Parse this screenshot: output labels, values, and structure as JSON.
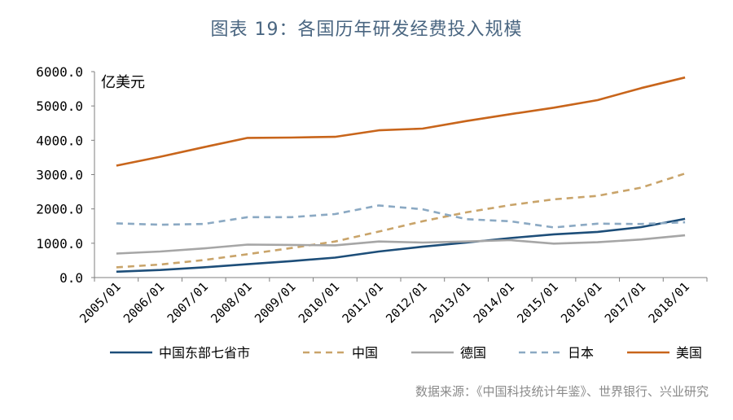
{
  "title": "图表 19：各国历年研发经费投入规模",
  "source": "数据来源：《中国科技统计年鉴》、世界银行、兴业研究",
  "colors": {
    "east7": "#1d4e79",
    "china": "#c9a46a",
    "germany": "#a6a6a6",
    "japan": "#8ba9c3",
    "usa": "#c8651b"
  },
  "chart_data": {
    "type": "line",
    "title": "图表 19：各国历年研发经费投入规模",
    "ylabel": "亿美元",
    "xlabel": "",
    "ylim": [
      0,
      6000
    ],
    "yticks": [
      "0.0",
      "1000.0",
      "2000.0",
      "3000.0",
      "4000.0",
      "5000.0",
      "6000.0"
    ],
    "yticks_values": [
      0,
      1000,
      2000,
      3000,
      4000,
      5000,
      6000
    ],
    "grid": false,
    "legend_position": "bottom",
    "categories": [
      "2005/01",
      "2006/01",
      "2007/01",
      "2008/01",
      "2009/01",
      "2010/01",
      "2011/01",
      "2012/01",
      "2013/01",
      "2014/01",
      "2015/01",
      "2016/01",
      "2017/01",
      "2018/01"
    ],
    "series": [
      {
        "name": "中国东部七省市",
        "style": "solid",
        "color_key": "east7",
        "values": [
          170,
          220,
          300,
          390,
          480,
          580,
          760,
          900,
          1020,
          1150,
          1260,
          1330,
          1470,
          1710
        ]
      },
      {
        "name": "中国",
        "style": "dashed",
        "color_key": "china",
        "values": [
          300,
          380,
          510,
          680,
          860,
          1050,
          1340,
          1640,
          1900,
          2110,
          2280,
          2380,
          2620,
          3030
        ]
      },
      {
        "name": "德国",
        "style": "solid",
        "color_key": "germany",
        "values": [
          700,
          760,
          850,
          960,
          950,
          940,
          1050,
          1020,
          1050,
          1090,
          990,
          1030,
          1110,
          1230
        ]
      },
      {
        "name": "日本",
        "style": "dashed",
        "color_key": "japan",
        "values": [
          1580,
          1540,
          1560,
          1760,
          1760,
          1850,
          2100,
          1990,
          1700,
          1640,
          1460,
          1570,
          1560,
          1610
        ]
      },
      {
        "name": "美国",
        "style": "solid",
        "color_key": "usa",
        "values": [
          3260,
          3520,
          3800,
          4070,
          4080,
          4100,
          4290,
          4340,
          4560,
          4760,
          4950,
          5170,
          5520,
          5830
        ]
      }
    ]
  }
}
